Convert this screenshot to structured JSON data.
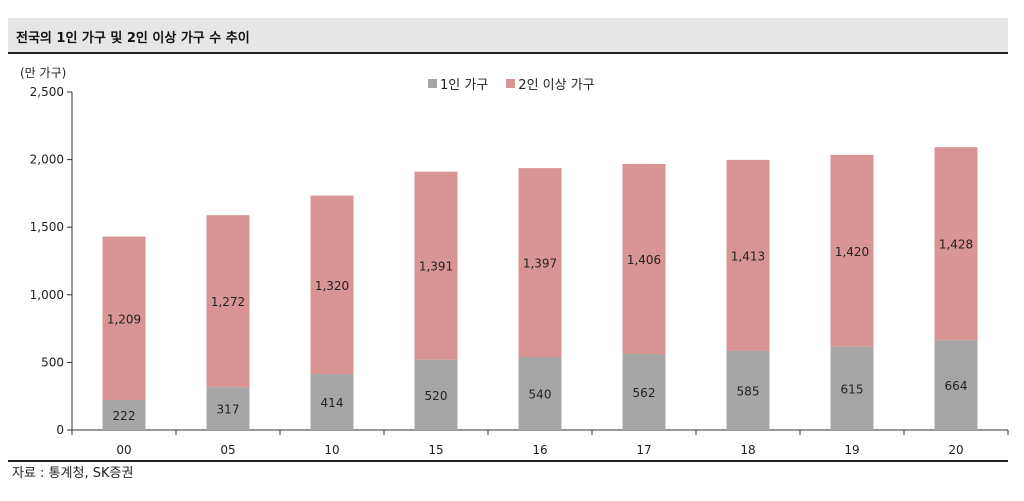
{
  "header": {
    "title": "전국의 1인 가구 및 2인 이상 가구 수 추이"
  },
  "footer": {
    "source": "자료 : 통계청, SK증권"
  },
  "colors": {
    "one_person": "#a6a6a6",
    "multi_person": "#d99594",
    "title_bg": "#e6e6e6"
  },
  "chart_data": {
    "type": "bar",
    "stacked": true,
    "title": "전국의 1인 가구 및 2인 이상 가구 수 추이",
    "ylabel": "(만 가구)",
    "xlabel": "",
    "categories": [
      "00",
      "05",
      "10",
      "15",
      "16",
      "17",
      "18",
      "19",
      "20"
    ],
    "series": [
      {
        "name": "1인 가구",
        "values": [
          222,
          317,
          414,
          520,
          540,
          562,
          585,
          615,
          664
        ]
      },
      {
        "name": "2인 이상 가구",
        "values": [
          1209,
          1272,
          1320,
          1391,
          1397,
          1406,
          1413,
          1420,
          1428
        ]
      }
    ],
    "ylim": [
      0,
      2500
    ],
    "yticks": [
      0,
      500,
      1000,
      1500,
      2000,
      2500
    ],
    "ytick_labels": [
      "0",
      "500",
      "1,000",
      "1,500",
      "2,000",
      "2,500"
    ],
    "legend_position": "top-center",
    "grid": false
  }
}
